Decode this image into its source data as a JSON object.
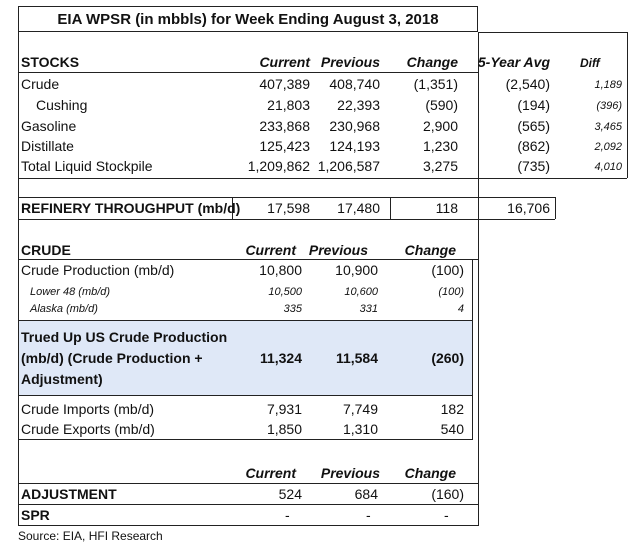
{
  "title": "EIA WPSR (in mbbls) for Week Ending August 3, 2018",
  "stocks": {
    "header": [
      "STOCKS",
      "Current",
      "Previous",
      "Change",
      "5-Year Avg",
      "Diff"
    ],
    "rows": [
      {
        "label": "Crude",
        "current": "407,389",
        "previous": "408,740",
        "change": "(1,351)",
        "avg5": "(2,540)",
        "diff": "1,189"
      },
      {
        "label": "Cushing",
        "current": "21,803",
        "previous": "22,393",
        "change": "(590)",
        "avg5": "(194)",
        "diff": "(396)"
      },
      {
        "label": "Gasoline",
        "current": "233,868",
        "previous": "230,968",
        "change": "2,900",
        "avg5": "(565)",
        "diff": "3,465"
      },
      {
        "label": "Distillate",
        "current": "125,423",
        "previous": "124,193",
        "change": "1,230",
        "avg5": "(862)",
        "diff": "2,092"
      },
      {
        "label": "Total Liquid Stockpile",
        "current": "1,209,862",
        "previous": "1,206,587",
        "change": "3,275",
        "avg5": "(735)",
        "diff": "4,010"
      }
    ]
  },
  "refinery": {
    "label": "REFINERY THROUGHPUT (mb/d)",
    "current": "17,598",
    "previous": "17,480",
    "change": "118",
    "avg5": "16,706"
  },
  "crude": {
    "header": [
      "CRUDE",
      "Current",
      "Previous",
      "Change"
    ],
    "production": {
      "label": "Crude Production (mb/d)",
      "current": "10,800",
      "previous": "10,900",
      "change": "(100)"
    },
    "lower48": {
      "label": "Lower 48 (mb/d)",
      "current": "10,500",
      "previous": "10,600",
      "change": "(100)"
    },
    "alaska": {
      "label": "Alaska (mb/d)",
      "current": "335",
      "previous": "331",
      "change": "4"
    },
    "trued_up": {
      "label_l1": "Trued Up US Crude Production",
      "label_l2": "(mb/d) (Crude Production +",
      "label_l3": "Adjustment)",
      "current": "11,324",
      "previous": "11,584",
      "change": "(260)"
    },
    "imports": {
      "label": "Crude Imports (mb/d)",
      "current": "7,931",
      "previous": "7,749",
      "change": "182"
    },
    "exports": {
      "label": "Crude Exports (mb/d)",
      "current": "1,850",
      "previous": "1,310",
      "change": "540"
    }
  },
  "adjustment": {
    "header": [
      "Current",
      "Previous",
      "Change"
    ],
    "adjustment_row": {
      "label": "ADJUSTMENT",
      "current": "524",
      "previous": "684",
      "change": "(160)"
    },
    "spr_row": {
      "label": "SPR",
      "current": "-",
      "previous": "-",
      "change": "-"
    }
  },
  "source": "Source: EIA, HFI Research"
}
